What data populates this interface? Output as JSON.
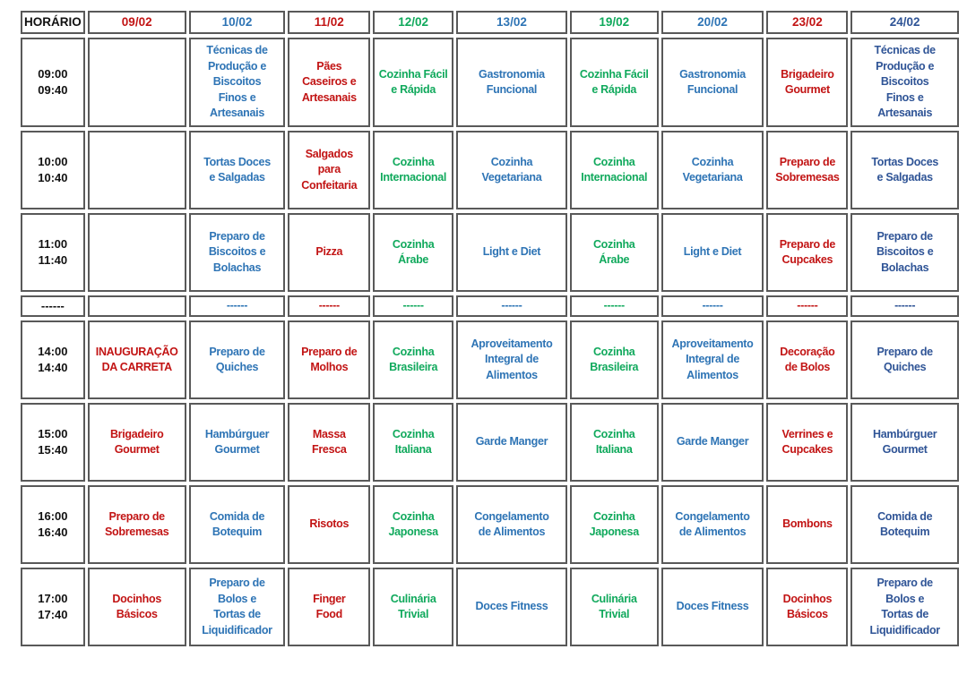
{
  "colors": {
    "red": "#C21414",
    "blue": "#2E74B5",
    "green": "#10A95C",
    "navy": "#2F5496",
    "black": "#111111"
  },
  "table": {
    "time_header": "HORÁRIO",
    "date_headers": [
      {
        "label": "09/02",
        "color": "red"
      },
      {
        "label": "10/02",
        "color": "blue"
      },
      {
        "label": "11/02",
        "color": "red"
      },
      {
        "label": "12/02",
        "color": "green"
      },
      {
        "label": "13/02",
        "color": "blue"
      },
      {
        "label": "19/02",
        "color": "green"
      },
      {
        "label": "20/02",
        "color": "blue"
      },
      {
        "label": "23/02",
        "color": "red"
      },
      {
        "label": "24/02",
        "color": "navy"
      }
    ],
    "rows": [
      {
        "time": "09:00\n09:40",
        "cells": [
          {
            "text": "",
            "color": "black"
          },
          {
            "text": "Técnicas de\nProdução e\nBiscoitos\nFinos e\nArtesanais",
            "color": "blue"
          },
          {
            "text": "Pães\nCaseiros e\nArtesanais",
            "color": "red"
          },
          {
            "text": "Cozinha Fácil\ne Rápida",
            "color": "green"
          },
          {
            "text": "Gastronomia\nFuncional",
            "color": "blue"
          },
          {
            "text": "Cozinha Fácil\ne Rápida",
            "color": "green"
          },
          {
            "text": "Gastronomia\nFuncional",
            "color": "blue"
          },
          {
            "text": "Brigadeiro\nGourmet",
            "color": "red"
          },
          {
            "text": "Técnicas de\nProdução e\nBiscoitos\nFinos e\nArtesanais",
            "color": "navy"
          }
        ]
      },
      {
        "time": "10:00\n10:40",
        "cells": [
          {
            "text": "",
            "color": "black"
          },
          {
            "text": "Tortas Doces\ne Salgadas",
            "color": "blue"
          },
          {
            "text": "Salgados\npara\nConfeitaria",
            "color": "red"
          },
          {
            "text": "Cozinha\nInternacional",
            "color": "green"
          },
          {
            "text": "Cozinha\nVegetariana",
            "color": "blue"
          },
          {
            "text": "Cozinha\nInternacional",
            "color": "green"
          },
          {
            "text": "Cozinha\nVegetariana",
            "color": "blue"
          },
          {
            "text": "Preparo de\nSobremesas",
            "color": "red"
          },
          {
            "text": "Tortas Doces\ne Salgadas",
            "color": "navy"
          }
        ]
      },
      {
        "time": "11:00\n11:40",
        "cells": [
          {
            "text": "",
            "color": "black"
          },
          {
            "text": "Preparo de\nBiscoitos e\nBolachas",
            "color": "blue"
          },
          {
            "text": "Pizza",
            "color": "red"
          },
          {
            "text": "Cozinha\nÁrabe",
            "color": "green"
          },
          {
            "text": "Light e Diet",
            "color": "blue"
          },
          {
            "text": "Cozinha\nÁrabe",
            "color": "green"
          },
          {
            "text": "Light e Diet",
            "color": "blue"
          },
          {
            "text": "Preparo de\nCupcakes",
            "color": "red"
          },
          {
            "text": "Preparo de\nBiscoitos e\nBolachas",
            "color": "navy"
          }
        ]
      },
      {
        "time": "------",
        "cells": [
          {
            "text": "",
            "color": "black"
          },
          {
            "text": "------",
            "color": "blue"
          },
          {
            "text": "------",
            "color": "red"
          },
          {
            "text": "------",
            "color": "green"
          },
          {
            "text": "------",
            "color": "blue"
          },
          {
            "text": "------",
            "color": "green"
          },
          {
            "text": "------",
            "color": "blue"
          },
          {
            "text": "------",
            "color": "red"
          },
          {
            "text": "------",
            "color": "navy"
          }
        ]
      },
      {
        "time": "14:00\n14:40",
        "cells": [
          {
            "text": "INAUGURAÇÃO\nDA CARRETA",
            "color": "red"
          },
          {
            "text": "Preparo de\nQuiches",
            "color": "blue"
          },
          {
            "text": "Preparo de\nMolhos",
            "color": "red"
          },
          {
            "text": "Cozinha\nBrasileira",
            "color": "green"
          },
          {
            "text": "Aproveitamento\nIntegral de\nAlimentos",
            "color": "blue"
          },
          {
            "text": "Cozinha\nBrasileira",
            "color": "green"
          },
          {
            "text": "Aproveitamento\nIntegral de\nAlimentos",
            "color": "blue"
          },
          {
            "text": "Decoração\nde Bolos",
            "color": "red"
          },
          {
            "text": "Preparo de\nQuiches",
            "color": "navy"
          }
        ]
      },
      {
        "time": "15:00\n15:40",
        "cells": [
          {
            "text": "Brigadeiro\nGourmet",
            "color": "red"
          },
          {
            "text": "Hambúrguer\nGourmet",
            "color": "blue"
          },
          {
            "text": "Massa\nFresca",
            "color": "red"
          },
          {
            "text": "Cozinha\nItaliana",
            "color": "green"
          },
          {
            "text": "Garde Manger",
            "color": "blue"
          },
          {
            "text": "Cozinha\nItaliana",
            "color": "green"
          },
          {
            "text": "Garde Manger",
            "color": "blue"
          },
          {
            "text": "Verrines e\nCupcakes",
            "color": "red"
          },
          {
            "text": "Hambúrguer\nGourmet",
            "color": "navy"
          }
        ]
      },
      {
        "time": "16:00\n16:40",
        "cells": [
          {
            "text": "Preparo de\nSobremesas",
            "color": "red"
          },
          {
            "text": "Comida de\nBotequim",
            "color": "blue"
          },
          {
            "text": "Risotos",
            "color": "red"
          },
          {
            "text": "Cozinha\nJaponesa",
            "color": "green"
          },
          {
            "text": "Congelamento\nde Alimentos",
            "color": "blue"
          },
          {
            "text": "Cozinha\nJaponesa",
            "color": "green"
          },
          {
            "text": "Congelamento\nde Alimentos",
            "color": "blue"
          },
          {
            "text": "Bombons",
            "color": "red"
          },
          {
            "text": "Comida de\nBotequim",
            "color": "navy"
          }
        ]
      },
      {
        "time": "17:00\n17:40",
        "cells": [
          {
            "text": "Docinhos\nBásicos",
            "color": "red"
          },
          {
            "text": "Preparo de\nBolos e\nTortas de\nLiquidificador",
            "color": "blue"
          },
          {
            "text": "Finger\nFood",
            "color": "red"
          },
          {
            "text": "Culinária\nTrivial",
            "color": "green"
          },
          {
            "text": "Doces Fitness",
            "color": "blue"
          },
          {
            "text": "Culinária\nTrivial",
            "color": "green"
          },
          {
            "text": "Doces Fitness",
            "color": "blue"
          },
          {
            "text": "Docinhos\nBásicos",
            "color": "red"
          },
          {
            "text": "Preparo de\nBolos e\nTortas de\nLiquidificador",
            "color": "navy"
          }
        ]
      }
    ]
  }
}
